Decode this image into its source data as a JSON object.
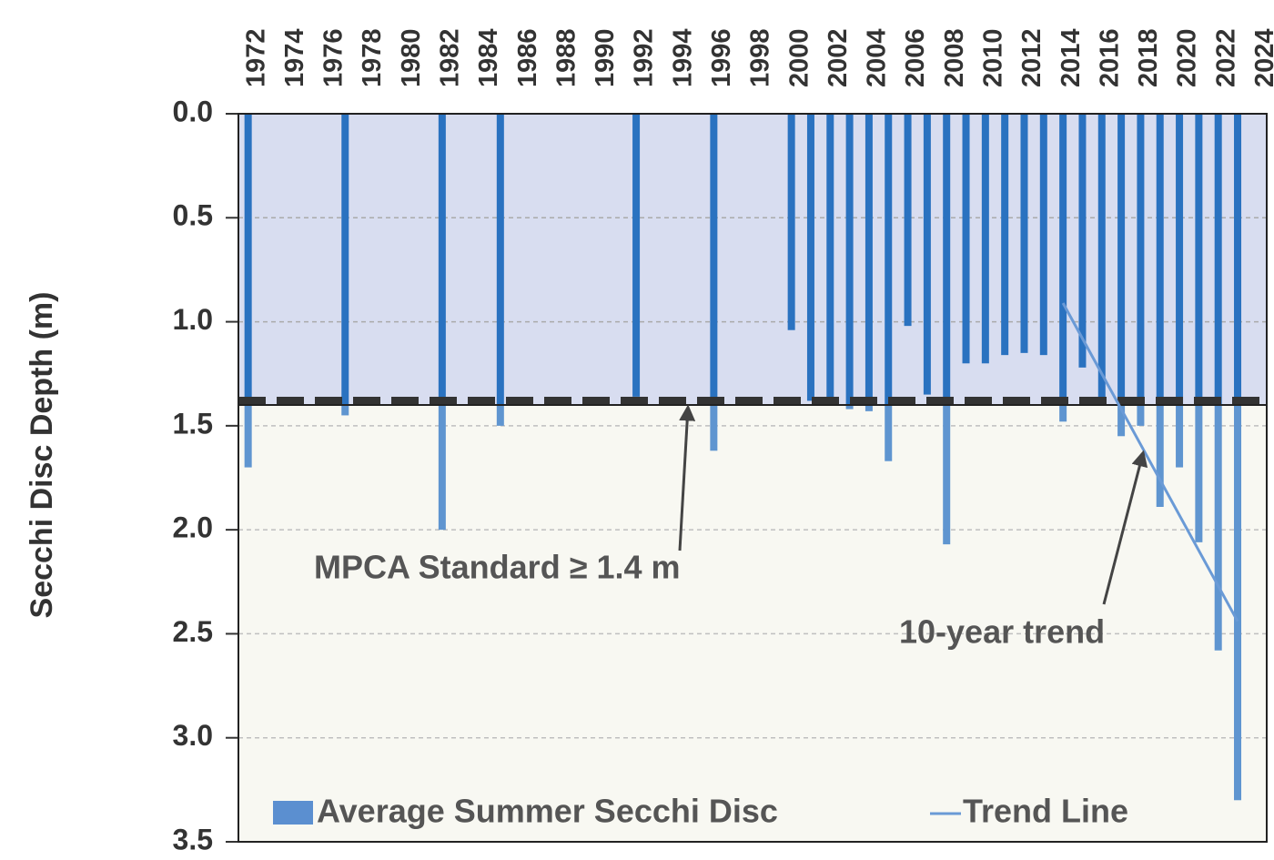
{
  "chart_data": {
    "type": "bar",
    "y_label": "Secchi Disc Depth (m)",
    "categories": [
      1972,
      null,
      1974,
      null,
      1976,
      null,
      1978,
      null,
      1980,
      null,
      1982,
      null,
      1984,
      null,
      1986,
      null,
      1988,
      null,
      1990,
      null,
      1992,
      null,
      1994,
      null,
      1996,
      null,
      1998,
      null,
      2000,
      null,
      2002,
      null,
      2004,
      null,
      2006,
      null,
      2008,
      null,
      2010,
      null,
      2012,
      null,
      2014,
      null,
      2016,
      null,
      2018,
      null,
      2020,
      null,
      2022,
      null,
      2024
    ],
    "series": [
      {
        "name": "Average Summer Secchi Disc",
        "color": "#2a72c0",
        "values": [
          1.7,
          null,
          null,
          null,
          null,
          1.45,
          null,
          null,
          null,
          null,
          2.0,
          null,
          null,
          1.5,
          null,
          null,
          null,
          null,
          null,
          null,
          1.36,
          null,
          null,
          null,
          1.62,
          null,
          null,
          null,
          1.04,
          1.38,
          1.37,
          1.42,
          1.43,
          1.67,
          1.02,
          1.35,
          2.07,
          1.2,
          1.2,
          1.16,
          1.15,
          1.16,
          1.48,
          1.22,
          1.39,
          1.55,
          1.5,
          1.89,
          1.7,
          2.06,
          2.58,
          3.3,
          null
        ]
      }
    ],
    "trend": {
      "name": "Trend Line",
      "color": "#6a9ad6",
      "x": [
        2014,
        2023
      ],
      "values": [
        0.91,
        2.44
      ]
    },
    "standard": 1.4,
    "annotations": [
      "MPCA Standard ≥ 1.4 m",
      "10-year trend"
    ],
    "ylim": [
      0,
      3.5
    ],
    "inverted": true,
    "yticks": [
      {
        "value": 0,
        "label": "0.0"
      },
      0.5,
      {
        "value": 1,
        "label": "1.0"
      },
      1.5,
      {
        "value": 2,
        "label": "2.0"
      },
      2.5,
      {
        "value": 3,
        "label": "3.0"
      },
      3.5
    ],
    "grid": true,
    "legend": "bottom"
  }
}
